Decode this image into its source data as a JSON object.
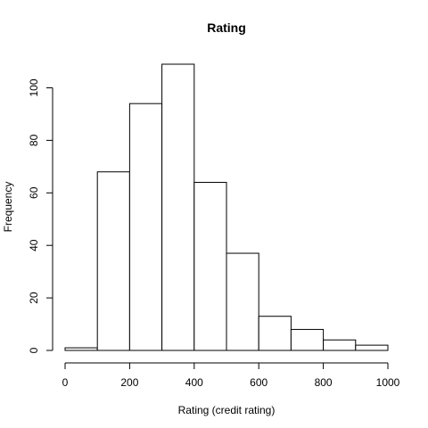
{
  "chart_data": {
    "type": "bar",
    "title": "Rating",
    "xlabel": "Rating (credit rating)",
    "ylabel": "Frequency",
    "bins": [
      {
        "start": 0,
        "end": 100,
        "count": 1
      },
      {
        "start": 100,
        "end": 200,
        "count": 68
      },
      {
        "start": 200,
        "end": 300,
        "count": 94
      },
      {
        "start": 300,
        "end": 400,
        "count": 109
      },
      {
        "start": 400,
        "end": 500,
        "count": 64
      },
      {
        "start": 500,
        "end": 600,
        "count": 37
      },
      {
        "start": 600,
        "end": 700,
        "count": 13
      },
      {
        "start": 700,
        "end": 800,
        "count": 8
      },
      {
        "start": 800,
        "end": 900,
        "count": 4
      },
      {
        "start": 900,
        "end": 1000,
        "count": 2
      }
    ],
    "xticks": [
      0,
      200,
      400,
      600,
      800,
      1000
    ],
    "yticks": [
      0,
      20,
      40,
      60,
      80,
      100
    ],
    "xlim": [
      0,
      1000
    ],
    "ylim": [
      0,
      109
    ],
    "grid": false,
    "bar_fill": "#ffffff",
    "bar_stroke": "#000000"
  }
}
